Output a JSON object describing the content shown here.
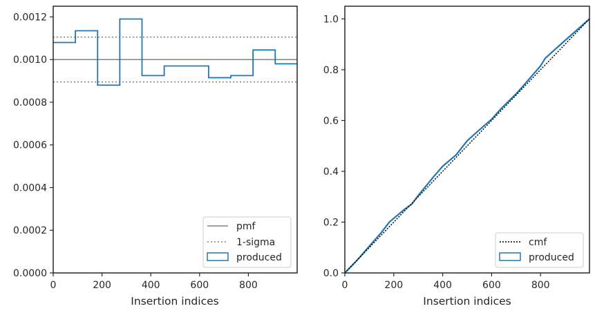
{
  "colors": {
    "produced": "#1f77b4",
    "pmf": "#808080",
    "sigma": "#808080",
    "cmf": "#000000",
    "axes": "#262626"
  },
  "chart_data": [
    {
      "type": "step",
      "xlabel": "Insertion indices",
      "ylabel": "",
      "xlim": [
        0,
        1000
      ],
      "ylim": [
        0,
        0.00125
      ],
      "xticks": [
        0,
        200,
        400,
        600,
        800
      ],
      "xtick_labels": [
        "0",
        "200",
        "400",
        "600",
        "800"
      ],
      "yticks": [
        0,
        0.0002,
        0.0004,
        0.0006,
        0.0008,
        0.001,
        0.0012
      ],
      "ytick_labels": [
        "0.0000",
        "0.0002",
        "0.0004",
        "0.0006",
        "0.0008",
        "0.0010",
        "0.0012"
      ],
      "legend_position": "lower right",
      "legend": [
        "pmf",
        "1-sigma",
        "produced"
      ],
      "pmf": 0.001,
      "sigma_band": [
        0.000895,
        0.001105
      ],
      "produced_bins": {
        "edges": [
          0,
          91,
          182,
          273,
          364,
          455,
          546,
          637,
          728,
          819,
          910,
          1000
        ],
        "values": [
          0.00108,
          0.001135,
          0.00088,
          0.00119,
          0.000925,
          0.00097,
          0.00097,
          0.000915,
          0.000925,
          0.001045,
          0.00098
        ]
      }
    },
    {
      "type": "line",
      "xlabel": "Insertion indices",
      "ylabel": "",
      "xlim": [
        0,
        1000
      ],
      "ylim": [
        0,
        1.05
      ],
      "xticks": [
        0,
        200,
        400,
        600,
        800
      ],
      "xtick_labels": [
        "0",
        "200",
        "400",
        "600",
        "800"
      ],
      "yticks": [
        0,
        0.2,
        0.4,
        0.6,
        0.8,
        1.0
      ],
      "ytick_labels": [
        "0.0",
        "0.2",
        "0.4",
        "0.6",
        "0.8",
        "1.0"
      ],
      "legend_position": "lower right",
      "legend": [
        "cmf",
        "produced"
      ],
      "cmf": {
        "x": [
          0,
          1000
        ],
        "y": [
          0,
          1
        ]
      },
      "produced": {
        "x": [
          0,
          50,
          100,
          150,
          182,
          200,
          250,
          273,
          300,
          364,
          400,
          455,
          500,
          546,
          600,
          637,
          700,
          728,
          800,
          819,
          900,
          1000
        ],
        "y": [
          0,
          0.05,
          0.105,
          0.16,
          0.2,
          0.215,
          0.255,
          0.27,
          0.305,
          0.38,
          0.42,
          0.465,
          0.52,
          0.56,
          0.605,
          0.645,
          0.705,
          0.735,
          0.815,
          0.845,
          0.915,
          1.0
        ]
      }
    }
  ]
}
